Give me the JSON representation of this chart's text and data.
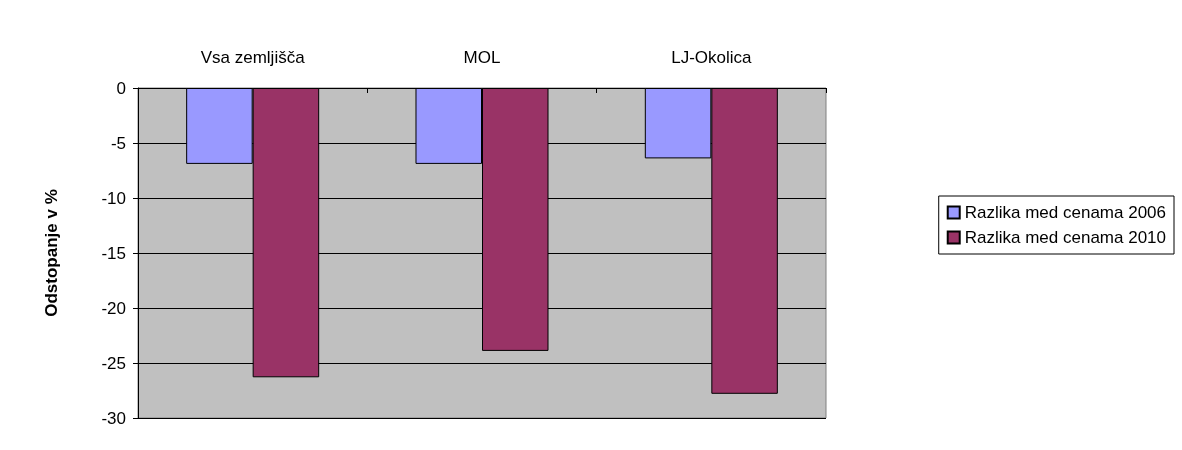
{
  "chart_data": {
    "type": "bar",
    "ylabel": "Odstopanje v %",
    "categories": [
      "Vsa zemljišča",
      "MOL",
      "LJ-Okolica"
    ],
    "series": [
      {
        "name": "Razlika med cenama 2006",
        "color": "#9999ff",
        "values": [
          -6.9,
          -6.9,
          -6.4
        ]
      },
      {
        "name": "Razlika med cenama 2010",
        "color": "#993366",
        "values": [
          -26.3,
          -23.9,
          -27.8
        ]
      }
    ],
    "ylim": [
      -30,
      0
    ],
    "yticks": [
      -30,
      -25,
      -20,
      -15,
      -10,
      -5,
      0
    ],
    "grid": "y",
    "legend": "right"
  }
}
